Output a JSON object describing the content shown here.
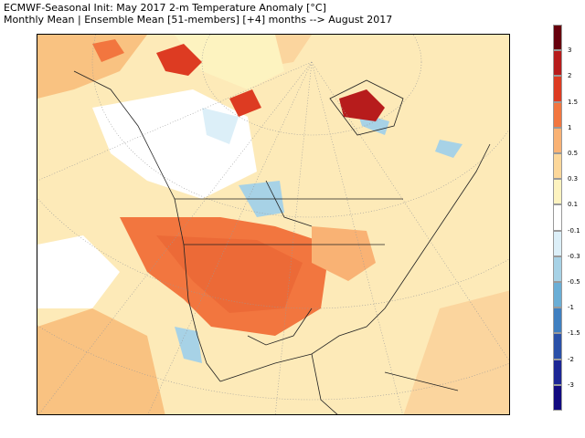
{
  "header": {
    "title_line1": "ECMWF-Seasonal Init: May 2017 2-m Temperature Anomaly [°C]",
    "title_line2": "Monthly Mean | Ensemble Mean [51-members] [+4] months --> August 2017"
  },
  "legend": {
    "labels": [
      "3",
      "2",
      "1.5",
      "1",
      "0.5",
      "0.3",
      "0.1",
      "-0.1",
      "-0.3",
      "-0.5",
      "-1",
      "-1.5",
      "-2",
      "-3"
    ],
    "colors": [
      "#67000d",
      "#b71c1c",
      "#dd3b22",
      "#f2763f",
      "#f9b274",
      "#fcd79a",
      "#fdf3c0",
      "#ffffff",
      "#dceff8",
      "#a7d2e6",
      "#6aaed6",
      "#3f7fc0",
      "#2a50a8",
      "#1c2695",
      "#120a80"
    ]
  },
  "map": {
    "region": "North America",
    "projection": "polar stereographic",
    "background_color": "#fdeab8"
  }
}
